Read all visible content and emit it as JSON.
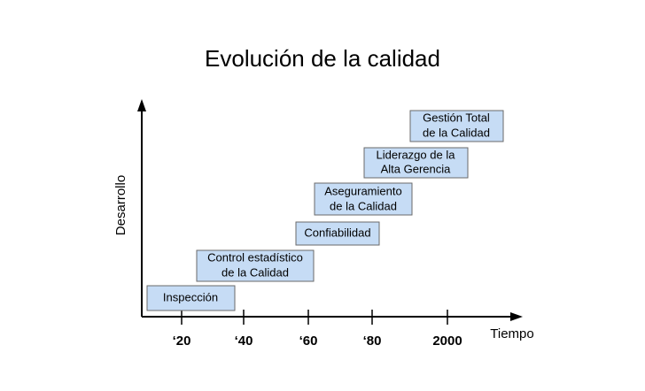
{
  "title": "Evolución de la calidad",
  "axes": {
    "y_label": "Desarrollo",
    "x_label": "Tiempo",
    "x_ticks": [
      "‘20",
      "‘40",
      "‘60",
      "‘80",
      "2000"
    ]
  },
  "stages": [
    {
      "lines": [
        "Inspección"
      ]
    },
    {
      "lines": [
        "Control estadístico",
        "de la Calidad"
      ]
    },
    {
      "lines": [
        "Confiabilidad"
      ]
    },
    {
      "lines": [
        "Aseguramiento",
        "de la Calidad"
      ]
    },
    {
      "lines": [
        "Liderazgo de la",
        "Alta Gerencia"
      ]
    },
    {
      "lines": [
        "Gestión Total",
        "de la Calidad"
      ]
    }
  ]
}
